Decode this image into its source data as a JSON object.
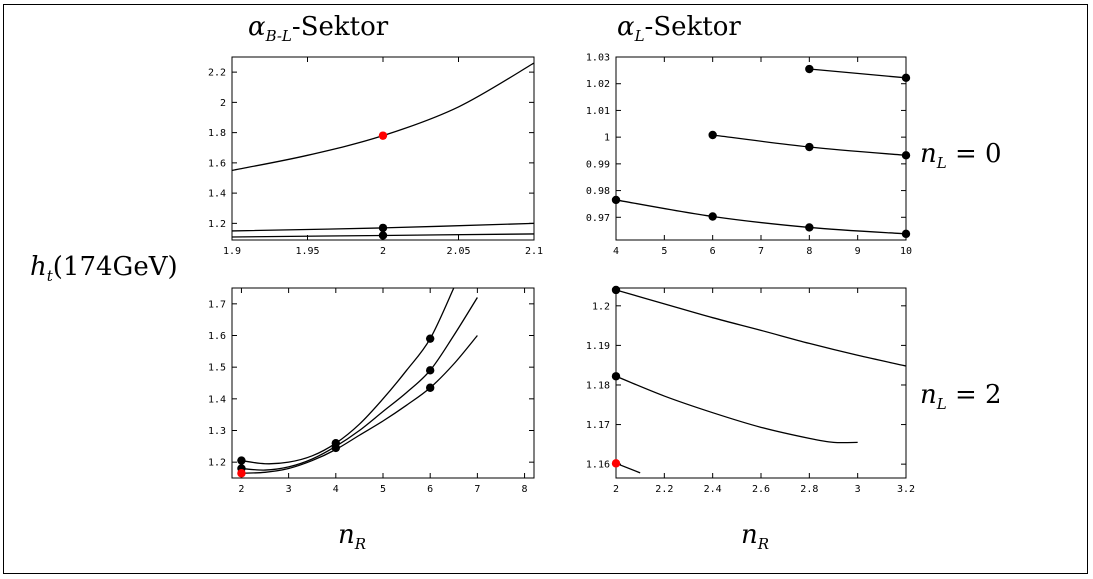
{
  "labels": {
    "col_left_title_prefix": "α",
    "col_left_title_sub": "B-L",
    "col_left_title_suffix": "-Sektor",
    "col_right_title_prefix": "α",
    "col_right_title_sub": "L",
    "col_right_title_suffix": "-Sektor",
    "y_label_main": "h",
    "y_label_sub": "t",
    "y_label_rest": "(174GeV)",
    "row_top_label_var": "n",
    "row_top_label_sub": "L",
    "row_top_label_rest": " = 0",
    "row_bottom_label_var": "n",
    "row_bottom_label_sub": "L",
    "row_bottom_label_rest": " = 2",
    "x_label_left_var": "n",
    "x_label_left_sub": "R",
    "x_label_right_var": "n",
    "x_label_right_sub": "R"
  },
  "colors": {
    "line": "#000000",
    "point": "#000000",
    "highlight": "#ff0000"
  },
  "chart_data": [
    {
      "type": "line",
      "panel": "top-left",
      "xlim": [
        1.9,
        2.1
      ],
      "ylim": [
        1.09,
        2.3
      ],
      "xticks": [
        "1.9",
        "1.95",
        "2",
        "2.05",
        "2.1"
      ],
      "xtick_values": [
        1.9,
        1.95,
        2.0,
        2.05,
        2.1
      ],
      "yticks": [
        "1.2",
        "1.4",
        "1.6",
        "1.8",
        "2",
        "2.2"
      ],
      "ytick_values": [
        1.2,
        1.4,
        1.6,
        1.8,
        2.0,
        2.2
      ],
      "series": [
        {
          "x": [
            1.9,
            1.95,
            2.0,
            2.05,
            2.1
          ],
          "y": [
            1.55,
            1.65,
            1.78,
            1.97,
            2.26
          ]
        },
        {
          "x": [
            1.9,
            2.0,
            2.1
          ],
          "y": [
            1.15,
            1.17,
            1.2
          ]
        },
        {
          "x": [
            1.9,
            2.0,
            2.1
          ],
          "y": [
            1.11,
            1.12,
            1.13
          ]
        }
      ],
      "points": [
        {
          "x": 2.0,
          "y": 1.78,
          "highlight": true
        },
        {
          "x": 2.0,
          "y": 1.17,
          "highlight": false
        },
        {
          "x": 2.0,
          "y": 1.12,
          "highlight": false
        }
      ]
    },
    {
      "type": "line",
      "panel": "top-right",
      "xlim": [
        4,
        10
      ],
      "ylim": [
        0.9615,
        1.03
      ],
      "xticks": [
        "4",
        "5",
        "6",
        "7",
        "8",
        "9",
        "10"
      ],
      "xtick_values": [
        4,
        5,
        6,
        7,
        8,
        9,
        10
      ],
      "yticks": [
        "0.97",
        "0.98",
        "0.99",
        "1",
        "1.01",
        "1.02",
        "1.03"
      ],
      "ytick_values": [
        0.97,
        0.98,
        0.99,
        1.0,
        1.01,
        1.02,
        1.03
      ],
      "series": [
        {
          "x": [
            8,
            10
          ],
          "y": [
            1.0255,
            1.0222
          ]
        },
        {
          "x": [
            6,
            8,
            10
          ],
          "y": [
            1.0008,
            0.9963,
            0.9932
          ]
        },
        {
          "x": [
            4,
            6,
            8,
            10
          ],
          "y": [
            0.9765,
            0.9703,
            0.9662,
            0.9638
          ]
        }
      ],
      "points": [
        {
          "x": 8,
          "y": 1.0255,
          "highlight": false
        },
        {
          "x": 10,
          "y": 1.0222,
          "highlight": false
        },
        {
          "x": 6,
          "y": 1.0008,
          "highlight": false
        },
        {
          "x": 8,
          "y": 0.9963,
          "highlight": false
        },
        {
          "x": 10,
          "y": 0.9932,
          "highlight": false
        },
        {
          "x": 4,
          "y": 0.9765,
          "highlight": false
        },
        {
          "x": 6,
          "y": 0.9703,
          "highlight": false
        },
        {
          "x": 8,
          "y": 0.9662,
          "highlight": false
        },
        {
          "x": 10,
          "y": 0.9638,
          "highlight": false
        }
      ]
    },
    {
      "type": "line",
      "panel": "bottom-left",
      "xlim": [
        1.8,
        8.2
      ],
      "ylim": [
        1.15,
        1.75
      ],
      "xticks": [
        "2",
        "3",
        "4",
        "5",
        "6",
        "7",
        "8"
      ],
      "xtick_values": [
        2,
        3,
        4,
        5,
        6,
        7,
        8
      ],
      "yticks": [
        "1.2",
        "1.3",
        "1.4",
        "1.5",
        "1.6",
        "1.7"
      ],
      "ytick_values": [
        1.2,
        1.3,
        1.4,
        1.5,
        1.6,
        1.7
      ],
      "series": [
        {
          "x": [
            2,
            2.5,
            3,
            3.5,
            4,
            4.5,
            5,
            5.5,
            6,
            6.5
          ],
          "y": [
            1.205,
            1.195,
            1.2,
            1.22,
            1.26,
            1.32,
            1.4,
            1.49,
            1.59,
            1.75
          ]
        },
        {
          "x": [
            2,
            2.5,
            3,
            3.5,
            4,
            4.5,
            5,
            5.5,
            6,
            6.5,
            7
          ],
          "y": [
            1.18,
            1.175,
            1.185,
            1.21,
            1.25,
            1.3,
            1.36,
            1.42,
            1.49,
            1.6,
            1.72
          ]
        },
        {
          "x": [
            2,
            2.5,
            3,
            3.5,
            4,
            4.5,
            5,
            5.5,
            6,
            6.5,
            7
          ],
          "y": [
            1.165,
            1.168,
            1.18,
            1.205,
            1.24,
            1.285,
            1.33,
            1.38,
            1.435,
            1.51,
            1.6
          ]
        }
      ],
      "points": [
        {
          "x": 2,
          "y": 1.205,
          "highlight": false
        },
        {
          "x": 2,
          "y": 1.18,
          "highlight": false
        },
        {
          "x": 2,
          "y": 1.165,
          "highlight": true
        },
        {
          "x": 4,
          "y": 1.26,
          "highlight": false
        },
        {
          "x": 4,
          "y": 1.245,
          "highlight": false
        },
        {
          "x": 6,
          "y": 1.59,
          "highlight": false
        },
        {
          "x": 6,
          "y": 1.49,
          "highlight": false
        },
        {
          "x": 6,
          "y": 1.435,
          "highlight": false
        }
      ]
    },
    {
      "type": "line",
      "panel": "bottom-right",
      "xlim": [
        2,
        3.2
      ],
      "ylim": [
        1.1565,
        1.2045
      ],
      "xticks": [
        "2",
        "2.2",
        "2.4",
        "2.6",
        "2.8",
        "3",
        "3.2"
      ],
      "xtick_values": [
        2,
        2.2,
        2.4,
        2.6,
        2.8,
        3.0,
        3.2
      ],
      "yticks": [
        "1.16",
        "1.17",
        "1.18",
        "1.19",
        "1.2"
      ],
      "ytick_values": [
        1.16,
        1.17,
        1.18,
        1.19,
        1.2
      ],
      "series": [
        {
          "x": [
            2,
            2.2,
            2.4,
            2.6,
            2.8,
            3.0,
            3.2
          ],
          "y": [
            1.204,
            1.2005,
            1.197,
            1.1938,
            1.1905,
            1.1875,
            1.1848
          ]
        },
        {
          "x": [
            2,
            2.2,
            2.4,
            2.6,
            2.8,
            2.9,
            3.0
          ],
          "y": [
            1.1822,
            1.1772,
            1.173,
            1.1693,
            1.1665,
            1.1655,
            1.1655
          ]
        },
        {
          "x": [
            2,
            2.1
          ],
          "y": [
            1.1602,
            1.1578
          ]
        }
      ],
      "points": [
        {
          "x": 2,
          "y": 1.204,
          "highlight": false
        },
        {
          "x": 2,
          "y": 1.1822,
          "highlight": false
        },
        {
          "x": 2,
          "y": 1.1602,
          "highlight": true
        }
      ]
    }
  ]
}
